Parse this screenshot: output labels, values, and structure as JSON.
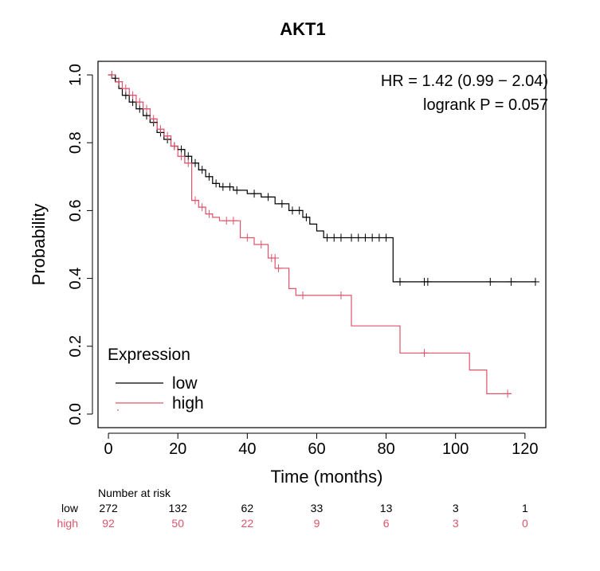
{
  "chart_data": {
    "type": "line",
    "subtype": "kaplan-meier",
    "title": "AKT1",
    "xlabel": "Time (months)",
    "ylabel": "Probability",
    "xlim": [
      -3,
      126
    ],
    "ylim": [
      -0.04,
      1.04
    ],
    "x_ticks": [
      0,
      20,
      40,
      60,
      80,
      100,
      120
    ],
    "y_ticks": [
      0.0,
      0.2,
      0.4,
      0.6,
      0.8,
      1.0
    ],
    "y_tick_labels": [
      "0.0",
      "0.2",
      "0.4",
      "0.6",
      "0.8",
      "1.0"
    ],
    "grid": false,
    "stats": {
      "hr": "HR = 1.42 (0.99 − 2.04)",
      "logrank": "logrank P = 0.057"
    },
    "legend": {
      "title": "Expression",
      "position": "bottom-left",
      "entries": [
        "low",
        "high"
      ]
    },
    "series": [
      {
        "name": "low",
        "color": "#000000",
        "steps": [
          [
            0,
            1.0
          ],
          [
            1,
            0.99
          ],
          [
            2,
            0.98
          ],
          [
            3,
            0.96
          ],
          [
            4,
            0.94
          ],
          [
            6,
            0.92
          ],
          [
            8,
            0.9
          ],
          [
            10,
            0.88
          ],
          [
            12,
            0.86
          ],
          [
            14,
            0.83
          ],
          [
            16,
            0.81
          ],
          [
            18,
            0.79
          ],
          [
            20,
            0.78
          ],
          [
            22,
            0.76
          ],
          [
            24,
            0.74
          ],
          [
            26,
            0.72
          ],
          [
            28,
            0.7
          ],
          [
            30,
            0.68
          ],
          [
            32,
            0.67
          ],
          [
            36,
            0.66
          ],
          [
            40,
            0.65
          ],
          [
            44,
            0.64
          ],
          [
            48,
            0.62
          ],
          [
            52,
            0.6
          ],
          [
            56,
            0.58
          ],
          [
            58,
            0.56
          ],
          [
            60,
            0.54
          ],
          [
            62,
            0.52
          ],
          [
            82,
            0.39
          ],
          [
            123,
            0.39
          ]
        ],
        "censors": [
          [
            1,
            1.0
          ],
          [
            2,
            0.99
          ],
          [
            3,
            0.98
          ],
          [
            5,
            0.94
          ],
          [
            7,
            0.92
          ],
          [
            9,
            0.9
          ],
          [
            11,
            0.88
          ],
          [
            13,
            0.86
          ],
          [
            15,
            0.83
          ],
          [
            17,
            0.81
          ],
          [
            19,
            0.79
          ],
          [
            21,
            0.78
          ],
          [
            23,
            0.76
          ],
          [
            25,
            0.74
          ],
          [
            27,
            0.72
          ],
          [
            29,
            0.7
          ],
          [
            31,
            0.68
          ],
          [
            33,
            0.67
          ],
          [
            35,
            0.67
          ],
          [
            37,
            0.66
          ],
          [
            42,
            0.65
          ],
          [
            46,
            0.64
          ],
          [
            50,
            0.62
          ],
          [
            53,
            0.6
          ],
          [
            55,
            0.6
          ],
          [
            57,
            0.58
          ],
          [
            63,
            0.52
          ],
          [
            65,
            0.52
          ],
          [
            67,
            0.52
          ],
          [
            70,
            0.52
          ],
          [
            72,
            0.52
          ],
          [
            74,
            0.52
          ],
          [
            76,
            0.52
          ],
          [
            78,
            0.52
          ],
          [
            80,
            0.52
          ],
          [
            84,
            0.39
          ],
          [
            91,
            0.39
          ],
          [
            92,
            0.39
          ],
          [
            110,
            0.39
          ],
          [
            116,
            0.39
          ],
          [
            123,
            0.39
          ]
        ]
      },
      {
        "name": "high",
        "color": "#df536b",
        "steps": [
          [
            0,
            1.0
          ],
          [
            2,
            0.98
          ],
          [
            4,
            0.96
          ],
          [
            6,
            0.94
          ],
          [
            8,
            0.92
          ],
          [
            10,
            0.9
          ],
          [
            12,
            0.87
          ],
          [
            14,
            0.84
          ],
          [
            16,
            0.82
          ],
          [
            18,
            0.79
          ],
          [
            20,
            0.76
          ],
          [
            22,
            0.74
          ],
          [
            24,
            0.63
          ],
          [
            26,
            0.61
          ],
          [
            28,
            0.59
          ],
          [
            30,
            0.58
          ],
          [
            32,
            0.57
          ],
          [
            38,
            0.52
          ],
          [
            42,
            0.5
          ],
          [
            46,
            0.46
          ],
          [
            48,
            0.43
          ],
          [
            52,
            0.37
          ],
          [
            54,
            0.35
          ],
          [
            62,
            0.35
          ],
          [
            70,
            0.26
          ],
          [
            84,
            0.18
          ],
          [
            104,
            0.13
          ],
          [
            109,
            0.06
          ],
          [
            116,
            0.06
          ]
        ],
        "censors": [
          [
            1,
            1.0
          ],
          [
            3,
            0.98
          ],
          [
            5,
            0.96
          ],
          [
            7,
            0.94
          ],
          [
            9,
            0.92
          ],
          [
            11,
            0.9
          ],
          [
            13,
            0.87
          ],
          [
            15,
            0.84
          ],
          [
            17,
            0.82
          ],
          [
            19,
            0.79
          ],
          [
            21,
            0.76
          ],
          [
            23,
            0.74
          ],
          [
            25,
            0.63
          ],
          [
            27,
            0.61
          ],
          [
            29,
            0.59
          ],
          [
            34,
            0.57
          ],
          [
            36,
            0.57
          ],
          [
            40,
            0.52
          ],
          [
            44,
            0.5
          ],
          [
            47,
            0.46
          ],
          [
            48,
            0.46
          ],
          [
            49,
            0.43
          ],
          [
            56,
            0.35
          ],
          [
            67,
            0.35
          ],
          [
            91,
            0.18
          ],
          [
            115,
            0.06
          ]
        ]
      }
    ],
    "risk_table": {
      "header": "Number at risk",
      "times": [
        0,
        20,
        40,
        60,
        80,
        100,
        120
      ],
      "rows": [
        {
          "name": "low",
          "color": "#000000",
          "values": [
            "272",
            "132",
            "62",
            "33",
            "13",
            "3",
            "1"
          ]
        },
        {
          "name": "high",
          "color": "#df536b",
          "values": [
            "92",
            "50",
            "22",
            "9",
            "6",
            "3",
            "0"
          ]
        }
      ]
    }
  }
}
